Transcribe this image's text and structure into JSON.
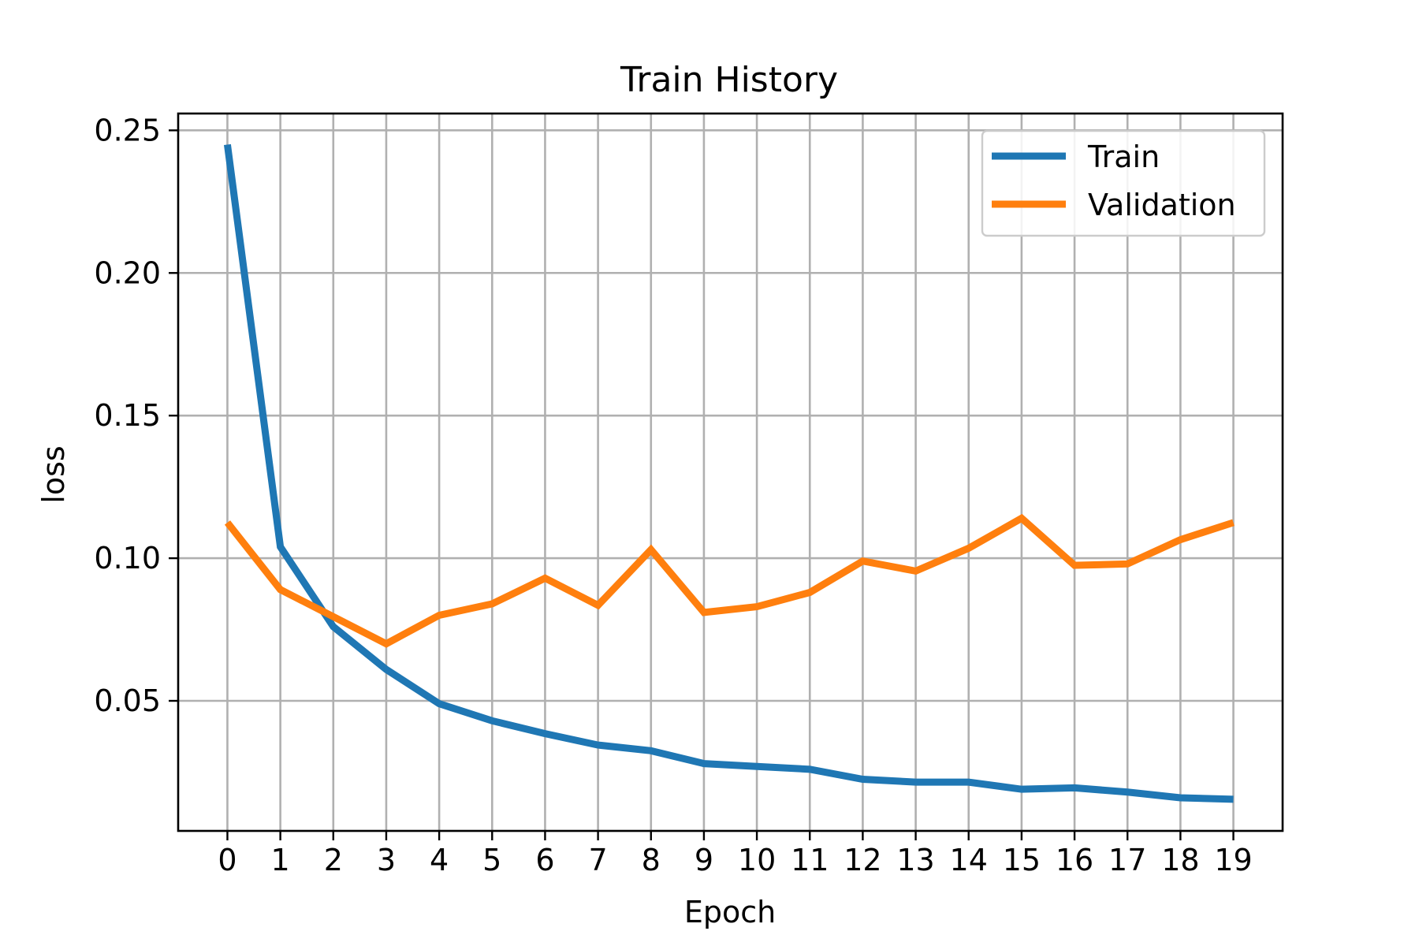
{
  "chart_data": {
    "type": "line",
    "title": "Train History",
    "xlabel": "Epoch",
    "ylabel": "loss",
    "x": [
      0,
      1,
      2,
      3,
      4,
      5,
      6,
      7,
      8,
      9,
      10,
      11,
      12,
      13,
      14,
      15,
      16,
      17,
      18,
      19
    ],
    "xticks": [
      "0",
      "1",
      "2",
      "3",
      "4",
      "5",
      "6",
      "7",
      "8",
      "9",
      "10",
      "11",
      "12",
      "13",
      "14",
      "15",
      "16",
      "17",
      "18",
      "19"
    ],
    "yticks": [
      0.05,
      0.1,
      0.15,
      0.2,
      0.25
    ],
    "ytick_labels": [
      "0.05",
      "0.10",
      "0.15",
      "0.20",
      "0.25"
    ],
    "xlim": [
      -0.93,
      19.93
    ],
    "ylim": [
      0.0044,
      0.2559
    ],
    "grid": true,
    "legend_position": "top-right",
    "series": [
      {
        "name": "Train",
        "color": "#1f77b4",
        "values": [
          0.245,
          0.104,
          0.076,
          0.061,
          0.049,
          0.043,
          0.0385,
          0.0345,
          0.0325,
          0.028,
          0.027,
          0.026,
          0.0225,
          0.0215,
          0.0215,
          0.019,
          0.0195,
          0.018,
          0.016,
          0.0155
        ]
      },
      {
        "name": "Validation",
        "color": "#ff7f0e",
        "values": [
          0.1125,
          0.089,
          0.0795,
          0.07,
          0.08,
          0.084,
          0.093,
          0.0835,
          0.103,
          0.081,
          0.083,
          0.088,
          0.099,
          0.0955,
          0.1035,
          0.114,
          0.0975,
          0.098,
          0.1065,
          0.1125
        ]
      }
    ]
  }
}
